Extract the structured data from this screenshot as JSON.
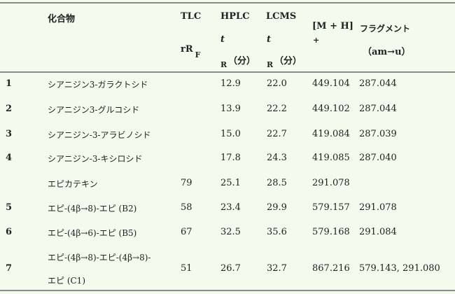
{
  "header": {
    "compound": "化合物",
    "tlc": "TLC",
    "tlc_sub_main": "rR",
    "tlc_sub": "F",
    "hplc": "HPLC",
    "hplc_t": "t",
    "hplc_r": "R",
    "hplc_unit": "（分）",
    "lcms": "LCMS",
    "lcms_t": "t",
    "lcms_r": "R",
    "lcms_unit": "（分）",
    "mh": "[M + H]",
    "mh_sup": "+",
    "fragment": "フラグメント",
    "fragment_unit": "（am→u）"
  },
  "rows": [
    {
      "no": "1",
      "compound": "シアニジン3-ガラクトシド",
      "tlc": "",
      "hplc": "12.9",
      "lcms": "22.0",
      "mh": "449.104",
      "fragment": "287.044"
    },
    {
      "no": "2",
      "compound": "シアニジン3-グルコシド",
      "tlc": "",
      "hplc": "13.9",
      "lcms": "22.2",
      "mh": "449.102",
      "fragment": "287.044"
    },
    {
      "no": "3",
      "compound": "シアニジン-3-アラビノシド",
      "tlc": "",
      "hplc": "15.0",
      "lcms": "22.7",
      "mh": "419.084",
      "fragment": "287.039"
    },
    {
      "no": "4",
      "compound": "シアニジン-3-キシロシド",
      "tlc": "",
      "hplc": "17.8",
      "lcms": "24.3",
      "mh": "419.085",
      "fragment": "287.040"
    },
    {
      "no": "",
      "compound": "エピカテキン",
      "tlc": "79",
      "hplc": "25.1",
      "lcms": "28.5",
      "mh": "291.078",
      "fragment": ""
    },
    {
      "no": "5",
      "compound": "エピ-(4β→8)-エピ (B2)",
      "tlc": "58",
      "hplc": "23.4",
      "lcms": "29.9",
      "mh": "579.157",
      "fragment": "291.078"
    },
    {
      "no": "6",
      "compound": "エピ-(4β→6)-エピ (B5)",
      "tlc": "67",
      "hplc": "32.5",
      "lcms": "35.6",
      "mh": "579.168",
      "fragment": "291.084"
    },
    {
      "no": "7",
      "compound": "エピ-(4β→8)-エピ-(4β→8)-",
      "compound_line2": "エピ (C1)",
      "tlc": "51",
      "hplc": "26.7",
      "lcms": "32.7",
      "mh": "867.216",
      "fragment": "579.143, 291.080"
    }
  ]
}
